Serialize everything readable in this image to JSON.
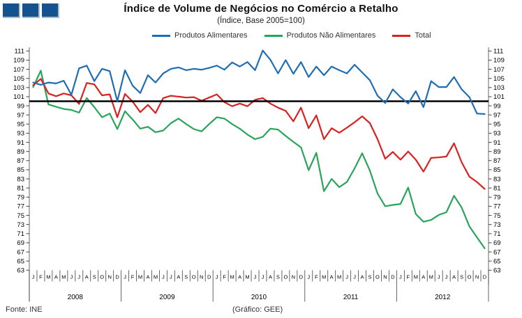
{
  "header": {
    "title": "Índice de Volume de Negócios no Comércio a Retalho",
    "subtitle": "(Índice, Base 2005=100)"
  },
  "logo": {
    "color": "#15538E"
  },
  "footer": {
    "source": "Fonte: INE",
    "credit": "(Gráfico: GEE)"
  },
  "chart_data": {
    "type": "line",
    "title": "Índice de Volume de Negócios no Comércio a Retalho",
    "subtitle": "(Índice, Base 2005=100)",
    "x_month_letters": [
      "J",
      "F",
      "M",
      "A",
      "M",
      "J",
      "J",
      "A",
      "S",
      "O",
      "N",
      "D"
    ],
    "years": [
      "2008",
      "2009",
      "2010",
      "2011",
      "2012"
    ],
    "ylim": [
      63,
      111
    ],
    "ytick_step": 2,
    "reference_line": 100,
    "reference_line_color": "#000000",
    "axis_color": "#808080",
    "grid": "off",
    "legend_position": "top",
    "series": [
      {
        "name": "Produtos Alimentares",
        "color": "#1F6DB2",
        "values": [
          104.1,
          103.6,
          104.1,
          103.9,
          104.5,
          101.4,
          107.2,
          107.8,
          104.4,
          107.1,
          106.6,
          100.0,
          106.8,
          103.4,
          101.8,
          105.7,
          104.1,
          106.1,
          107.1,
          107.4,
          106.8,
          107.1,
          106.9,
          107.3,
          107.8,
          106.9,
          108.5,
          107.6,
          108.6,
          106.8,
          111.1,
          109.1,
          106.1,
          109.0,
          106.0,
          108.6,
          105.3,
          107.6,
          105.7,
          107.6,
          106.8,
          106.1,
          108.0,
          106.3,
          104.6,
          101.2,
          99.6,
          102.6,
          100.9,
          99.5,
          102.2,
          98.7,
          104.4,
          103.1,
          103.1,
          105.3,
          102.6,
          100.9,
          97.3,
          97.2
        ]
      },
      {
        "name": "Produtos Não Alimentares",
        "color": "#29A45B",
        "values": [
          103.1,
          106.7,
          99.3,
          98.8,
          98.3,
          98.1,
          97.5,
          100.7,
          98.7,
          96.5,
          97.3,
          93.9,
          97.8,
          96.0,
          94.0,
          94.4,
          93.2,
          93.6,
          95.2,
          96.2,
          95.0,
          93.9,
          93.4,
          95.0,
          96.5,
          96.2,
          95.0,
          94.0,
          92.7,
          91.7,
          92.2,
          94.0,
          93.8,
          92.4,
          91.1,
          89.9,
          84.9,
          88.7,
          80.3,
          83.0,
          81.2,
          82.3,
          85.3,
          88.6,
          84.8,
          79.8,
          77.0,
          77.3,
          77.5,
          81.1,
          75.3,
          73.6,
          74.0,
          75.1,
          75.7,
          79.3,
          76.7,
          72.6,
          70.2,
          67.8
        ]
      },
      {
        "name": "Total",
        "color": "#D92121",
        "values": [
          103.5,
          104.9,
          101.7,
          101.1,
          101.7,
          101.3,
          99.4,
          104.0,
          103.7,
          101.3,
          101.5,
          96.5,
          101.6,
          99.9,
          97.6,
          99.2,
          97.4,
          100.7,
          101.2,
          101.0,
          100.8,
          100.9,
          100.1,
          100.8,
          101.5,
          99.8,
          98.9,
          99.5,
          98.9,
          100.3,
          100.7,
          99.5,
          98.6,
          97.9,
          95.6,
          98.6,
          94.1,
          96.9,
          91.7,
          94.1,
          93.1,
          94.2,
          95.4,
          96.7,
          95.2,
          91.7,
          87.4,
          88.9,
          87.2,
          89.0,
          87.2,
          84.6,
          87.6,
          87.7,
          87.9,
          90.8,
          86.6,
          83.5,
          82.3,
          80.8
        ]
      }
    ]
  }
}
